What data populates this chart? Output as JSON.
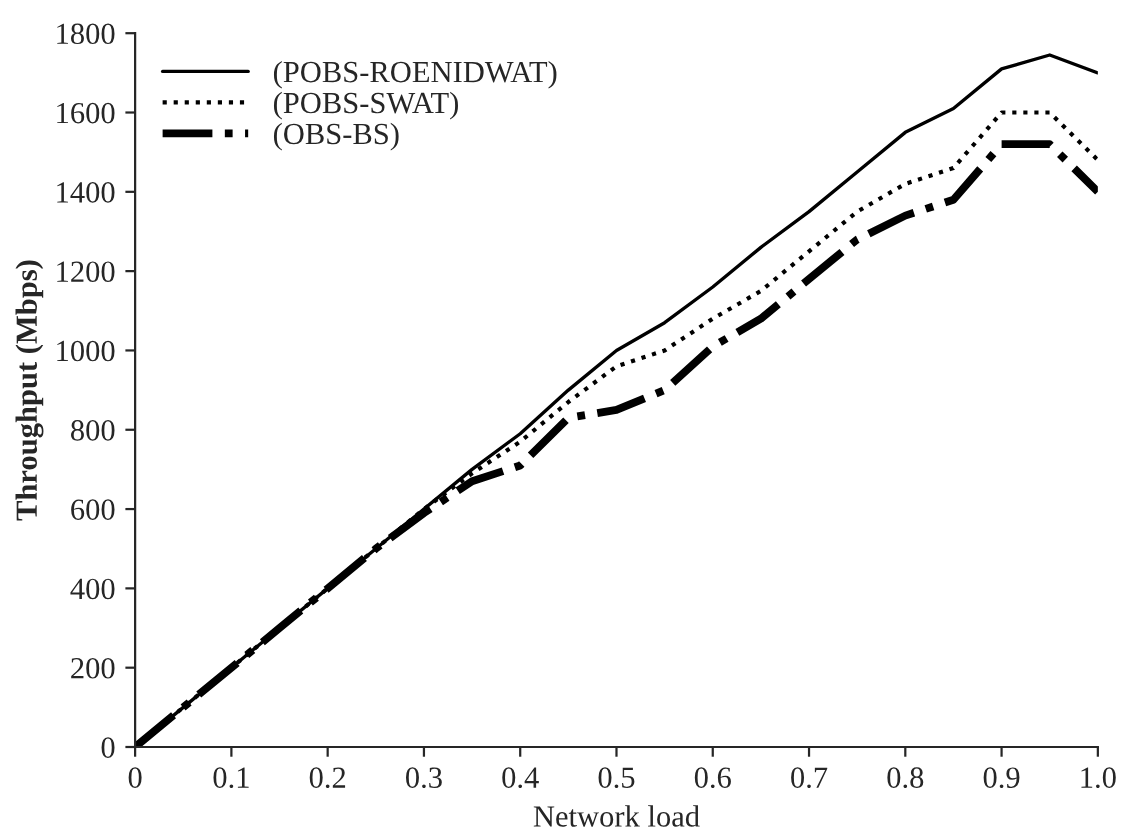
{
  "chart_data": {
    "type": "line",
    "xlabel": "Network load",
    "ylabel": "Throughput (Mbps)",
    "x": [
      0,
      0.05,
      0.1,
      0.15,
      0.2,
      0.25,
      0.3,
      0.35,
      0.4,
      0.45,
      0.5,
      0.55,
      0.6,
      0.65,
      0.7,
      0.75,
      0.8,
      0.85,
      0.9,
      0.95,
      1.0
    ],
    "series": [
      {
        "name": "(POBS-ROENIDWAT)",
        "color": "#000000",
        "line_style": "solid",
        "values": [
          0,
          100,
          200,
          300,
          400,
          500,
          600,
          700,
          790,
          900,
          1000,
          1070,
          1160,
          1260,
          1350,
          1450,
          1550,
          1610,
          1710,
          1745,
          1700
        ]
      },
      {
        "name": "(POBS-SWAT)",
        "color": "#000000",
        "line_style": "dotted",
        "values": [
          0,
          100,
          200,
          300,
          400,
          500,
          600,
          690,
          770,
          870,
          960,
          1000,
          1080,
          1150,
          1250,
          1350,
          1420,
          1460,
          1600,
          1600,
          1480
        ]
      },
      {
        "name": "(OBS-BS)",
        "color": "#000000",
        "line_style": "dashdot",
        "values": [
          0,
          100,
          200,
          300,
          400,
          500,
          590,
          670,
          710,
          830,
          850,
          900,
          1010,
          1080,
          1180,
          1280,
          1340,
          1380,
          1520,
          1520,
          1400
        ]
      }
    ],
    "xlim": [
      0,
      1.0
    ],
    "xticks": [
      0,
      0.1,
      0.2,
      0.3,
      0.4,
      0.5,
      0.6,
      0.7,
      0.8,
      0.9,
      {
        "value": 1.0,
        "label": "1.0"
      }
    ],
    "ylim": [
      0,
      1800
    ],
    "yticks": [
      0,
      200,
      400,
      600,
      800,
      1000,
      1200,
      1400,
      1600,
      1800
    ],
    "grid": false,
    "legend": "top left",
    "marker": "none"
  }
}
